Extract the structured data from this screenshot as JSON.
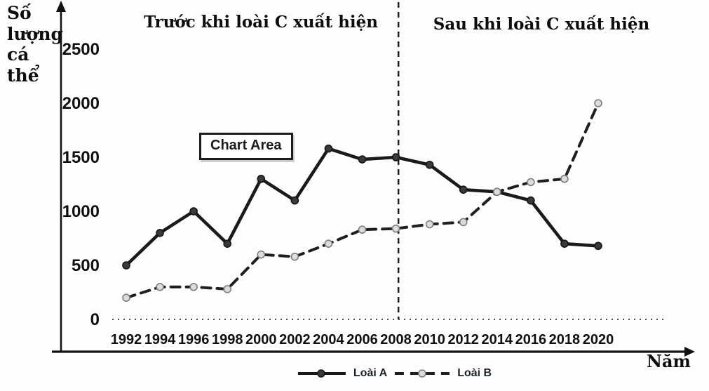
{
  "chart_data": {
    "type": "line",
    "title": "",
    "xlabel": "Năm",
    "ylabel": "Số lượng cá thể",
    "ylabel_display": "Số\nlượng\ncá\nthể",
    "x": [
      1992,
      1994,
      1996,
      1998,
      2000,
      2002,
      2004,
      2006,
      2008,
      2010,
      2012,
      2014,
      2016,
      2018,
      2020
    ],
    "ylim": [
      0,
      2500
    ],
    "yticks": [
      0,
      500,
      1000,
      1500,
      2000,
      2500
    ],
    "grid": "zero-baseline-dotted-only",
    "legend_position": "bottom-center",
    "annotations": {
      "before": "Trước khi loài C xuất hiện",
      "after": "Sau khi loài C xuất hiện",
      "chart_area_label": "Chart Area",
      "divider_year": 2008.15,
      "divider_style": "vertical-dashed"
    },
    "series": [
      {
        "name": "Loài A",
        "style": "solid",
        "color": "#1a1a1a",
        "marker_fill": "#3a3a3a",
        "marker_stroke": "#141414",
        "values": [
          500,
          800,
          1000,
          700,
          1300,
          1100,
          1580,
          1480,
          1500,
          1430,
          1200,
          1180,
          1100,
          700,
          680
        ]
      },
      {
        "name": "Loài B",
        "style": "dashed",
        "color": "#1f1f1f",
        "marker_fill": "#dcdcdc",
        "marker_stroke": "#7d7d7d",
        "values": [
          200,
          300,
          300,
          280,
          600,
          580,
          700,
          830,
          840,
          880,
          900,
          1180,
          1270,
          1300,
          2000
        ]
      }
    ],
    "axis_color": "#111111",
    "baseline_dotted_color": "#4a4a4a"
  }
}
